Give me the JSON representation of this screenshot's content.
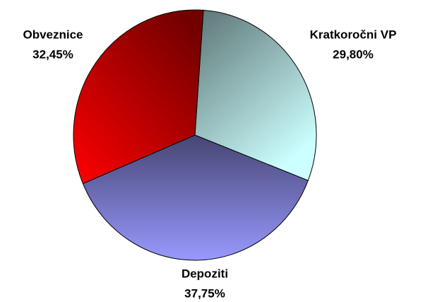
{
  "chart_data": {
    "type": "pie",
    "categories": [
      "Kratkoročni VP",
      "Depoziti",
      "Obveznice"
    ],
    "values": [
      29.8,
      37.75,
      32.45
    ],
    "value_labels": [
      "29,80%",
      "37,75%",
      "32,45%"
    ],
    "colors": [
      "#ccffff",
      "#9999ff",
      "#ff0000"
    ]
  }
}
